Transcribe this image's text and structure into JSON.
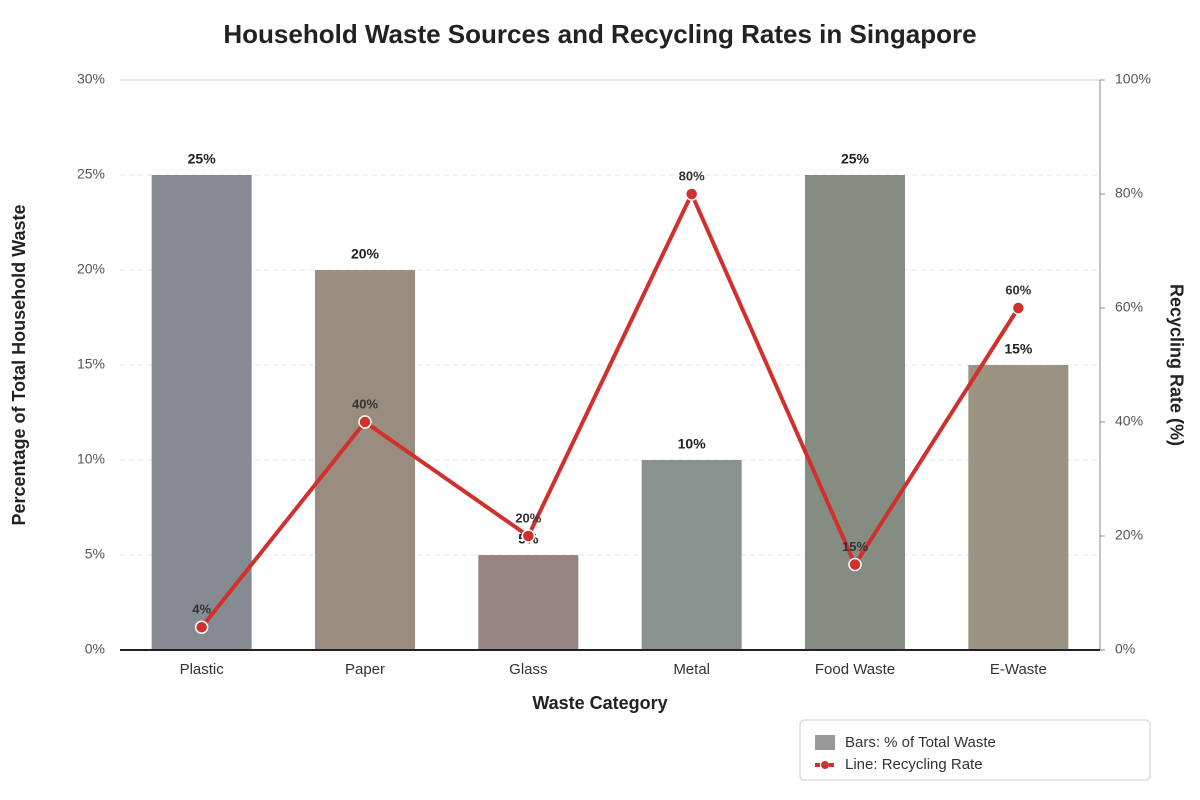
{
  "chart_data": {
    "type": "bar_line",
    "title": "Household Waste Sources and Recycling Rates in Singapore",
    "x_label": "Waste Category",
    "y_label": "Percentage of Total Household Waste",
    "y2_label": "Recycling Rate (%)",
    "categories": [
      "Plastic",
      "Paper",
      "Glass",
      "Metal",
      "Food Waste",
      "E-Waste"
    ],
    "series": [
      {
        "name": "Bars: % of Total Waste",
        "type": "bar",
        "color": "#999999",
        "colors": [
          "#858a93",
          "#9a8c7e",
          "#978584",
          "#8a9290",
          "#858d83",
          "#9b9482"
        ],
        "values": [
          25,
          20,
          5,
          10,
          25,
          15
        ],
        "value_labels": [
          "25%",
          "20%",
          "5%",
          "10%",
          "25%",
          "15%"
        ]
      },
      {
        "name": "Line: Recycling Rate",
        "type": "line",
        "axis": "y2",
        "color": "#d0312d",
        "values": [
          4,
          40,
          20,
          80,
          15,
          60
        ],
        "value_labels": [
          "4%",
          "40%",
          "20%",
          "80%",
          "15%",
          "60%"
        ]
      }
    ],
    "ylim": [
      0,
      30
    ],
    "yticks": [
      {
        "value": 0,
        "label": "0%"
      },
      {
        "value": 5,
        "label": "5%"
      },
      {
        "value": 10,
        "label": "10%"
      },
      {
        "value": 15,
        "label": "15%"
      },
      {
        "value": 20,
        "label": "20%"
      },
      {
        "value": 25,
        "label": "25%"
      },
      {
        "value": 30,
        "label": "30%"
      }
    ],
    "y2lim": [
      0,
      100
    ],
    "y2ticks": [
      {
        "value": 0,
        "label": "0%"
      },
      {
        "value": 20,
        "label": "20%"
      },
      {
        "value": 40,
        "label": "40%"
      },
      {
        "value": 60,
        "label": "60%"
      },
      {
        "value": 80,
        "label": "80%"
      },
      {
        "value": 100,
        "label": "100%"
      }
    ],
    "grid": true,
    "legend": "lower right"
  }
}
